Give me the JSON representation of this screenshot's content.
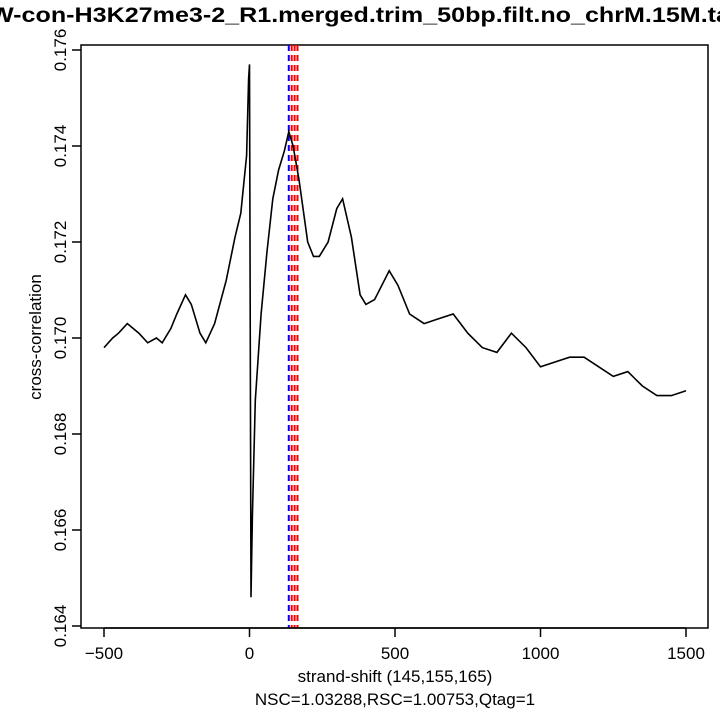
{
  "chart_data": {
    "type": "line",
    "title": "W-con-H3K27me3-2_R1.merged.trim_50bp.filt.no_chrM.15M.ta",
    "xlabel": "strand-shift (145,155,165)",
    "subtitle": "NSC=1.03288,RSC=1.00753,Qtag=1",
    "ylabel": "cross-correlation",
    "xlim": [
      -500,
      1500
    ],
    "ylim": [
      0.164,
      0.176
    ],
    "x_ticks": [
      "-500",
      "0",
      "500",
      "1000",
      "1500"
    ],
    "y_ticks": [
      "0.164",
      "0.166",
      "0.168",
      "0.170",
      "0.172",
      "0.174",
      "0.176"
    ],
    "grid": false,
    "line_color": "#000000",
    "series": [
      {
        "x": [
          -500,
          -470,
          -450,
          -420,
          -400,
          -380,
          -350,
          -320,
          -300,
          -270,
          -250,
          -220,
          -200,
          -170,
          -150,
          -120,
          -80,
          -50,
          -30,
          -10,
          -3,
          0,
          5,
          10,
          20,
          40,
          60,
          80,
          100,
          120,
          135,
          150,
          170,
          200,
          220,
          240,
          270,
          300,
          320,
          350,
          380,
          400,
          430,
          480,
          510,
          550,
          600,
          650,
          700,
          750,
          800,
          850,
          900,
          950,
          1000,
          1050,
          1100,
          1150,
          1200,
          1250,
          1300,
          1350,
          1400,
          1450,
          1500
        ],
        "y": [
          0.1698,
          0.17,
          0.1701,
          0.1703,
          0.1702,
          0.1701,
          0.1699,
          0.17,
          0.1699,
          0.1702,
          0.1705,
          0.1709,
          0.1707,
          0.1701,
          0.1699,
          0.1703,
          0.1712,
          0.1721,
          0.1726,
          0.1738,
          0.1754,
          0.1757,
          0.1646,
          0.1663,
          0.1687,
          0.1705,
          0.1718,
          0.1729,
          0.1735,
          0.1739,
          0.1743,
          0.174,
          0.1733,
          0.172,
          0.1717,
          0.1717,
          0.172,
          0.1727,
          0.1729,
          0.1721,
          0.1709,
          0.1707,
          0.1708,
          0.1714,
          0.1711,
          0.1705,
          0.1703,
          0.1704,
          0.1705,
          0.1701,
          0.1698,
          0.1697,
          0.1701,
          0.1698,
          0.1694,
          0.1695,
          0.1696,
          0.1696,
          0.1694,
          0.1692,
          0.1693,
          0.169,
          0.1688,
          0.1688,
          0.1689
        ]
      }
    ],
    "vertical_lines": [
      {
        "x": 135,
        "color": "#0000ff",
        "style": "dashed"
      },
      {
        "x": 145,
        "color": "#ff0000",
        "style": "dashed"
      },
      {
        "x": 155,
        "color": "#ff0000",
        "style": "dashed"
      },
      {
        "x": 165,
        "color": "#ff0000",
        "style": "dashed"
      }
    ]
  }
}
